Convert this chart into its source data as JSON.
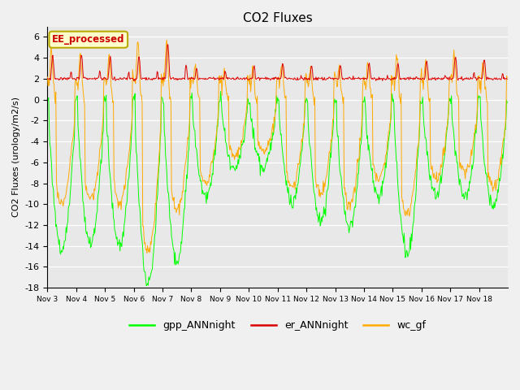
{
  "title": "CO2 Fluxes",
  "ylabel": "CO2 Fluxes (urology/m2/s)",
  "ylim": [
    -18,
    7
  ],
  "yticks": [
    -18,
    -16,
    -14,
    -12,
    -10,
    -8,
    -6,
    -4,
    -2,
    0,
    2,
    4,
    6
  ],
  "bg_color": "#e8e8e8",
  "fig_color": "#f0f0f0",
  "gpp_color": "#00ff00",
  "er_color": "#dd0000",
  "wc_color": "#ffaa00",
  "legend_label": "EE_processed",
  "x_tick_labels": [
    "Nov 3",
    "Nov 4",
    "Nov 5",
    "Nov 6",
    "Nov 7",
    "Nov 8",
    "Nov 9",
    "Nov 10",
    "Nov 11",
    "Nov 12",
    "Nov 13",
    "Nov 14",
    "Nov 15",
    "Nov 16",
    "Nov 17",
    "Nov 18"
  ],
  "num_days": 16,
  "points_per_day": 48,
  "day_mins_gpp": [
    -14.5,
    -13.8,
    -14.0,
    -17.5,
    -15.5,
    -9.2,
    -6.8,
    -6.5,
    -9.8,
    -11.8,
    -12.3,
    -9.2,
    -14.8,
    -9.0,
    -9.2,
    -10.2
  ],
  "day_mins_wc": [
    -10.0,
    -9.5,
    -9.8,
    -14.5,
    -10.5,
    -8.0,
    -5.5,
    -5.0,
    -8.5,
    -9.0,
    -10.0,
    -7.5,
    -11.0,
    -7.5,
    -7.0,
    -8.5
  ],
  "er_peaks": [
    4.2,
    4.3,
    4.2,
    4.1,
    5.3,
    3.0,
    2.7,
    3.2,
    3.5,
    3.3,
    3.3,
    3.5,
    3.5,
    3.7,
    4.1,
    3.9
  ],
  "wc_peaks": [
    4.7,
    4.5,
    4.2,
    5.5,
    5.5,
    3.5,
    2.8,
    3.0,
    3.5,
    3.0,
    3.2,
    3.8,
    4.2,
    3.5,
    4.2,
    3.5
  ]
}
